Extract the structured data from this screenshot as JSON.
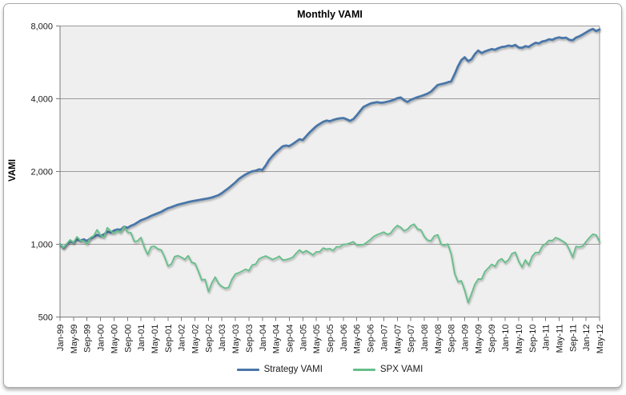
{
  "chart_data": {
    "type": "line",
    "title": "Monthly VAMI",
    "ylabel": "VAMI",
    "y_scale": "log",
    "ylim": [
      500,
      8000
    ],
    "grid": true,
    "legend_position": "bottom",
    "y_ticks": [
      {
        "value": 8000,
        "label": "8,000"
      },
      {
        "value": 4000,
        "label": "4,000"
      },
      {
        "value": 2000,
        "label": "2,000"
      },
      {
        "value": 1000,
        "label": "1,000"
      },
      {
        "value": 500,
        "label": "500"
      }
    ],
    "x_tick_every_months": 4,
    "x_tick_labels": [
      "Jan-99",
      "May-99",
      "Sep-99",
      "Jan-00",
      "May-00",
      "Sep-00",
      "Jan-01",
      "May-01",
      "Sep-01",
      "Jan-02",
      "May-02",
      "Sep-02",
      "Jan-03",
      "May-03",
      "Sep-03",
      "Jan-04",
      "May-04",
      "Sep-04",
      "Jan-05",
      "May-05",
      "Sep-05",
      "Jan-06",
      "May-06",
      "Sep-06",
      "Jan-07",
      "May-07",
      "Sep-07",
      "Jan-08",
      "May-08",
      "Sep-08",
      "Jan-09",
      "May-09",
      "Sep-09",
      "Jan-10",
      "May-10",
      "Sep-10",
      "Jan-11",
      "May-11",
      "Sep-11",
      "Jan-12",
      "May-12"
    ],
    "series": [
      {
        "name": "Strategy VAMI",
        "color": "#4A76A8",
        "line_width": 2.8,
        "values": [
          1000,
          965,
          1000,
          1030,
          1018,
          1048,
          1035,
          1048,
          1032,
          1058,
          1075,
          1092,
          1082,
          1098,
          1128,
          1118,
          1140,
          1152,
          1148,
          1183,
          1170,
          1192,
          1208,
          1232,
          1258,
          1272,
          1290,
          1310,
          1328,
          1345,
          1362,
          1388,
          1410,
          1424,
          1442,
          1458,
          1470,
          1482,
          1495,
          1505,
          1515,
          1524,
          1532,
          1541,
          1550,
          1562,
          1578,
          1598,
          1628,
          1668,
          1708,
          1755,
          1805,
          1862,
          1905,
          1945,
          1978,
          2005,
          2015,
          2042,
          2030,
          2120,
          2235,
          2320,
          2400,
          2470,
          2540,
          2562,
          2548,
          2600,
          2660,
          2720,
          2700,
          2800,
          2900,
          2990,
          3080,
          3150,
          3210,
          3250,
          3230,
          3270,
          3300,
          3320,
          3330,
          3290,
          3240,
          3300,
          3420,
          3560,
          3700,
          3760,
          3820,
          3850,
          3870,
          3850,
          3860,
          3890,
          3920,
          3960,
          4020,
          4050,
          3950,
          3880,
          3960,
          4010,
          4060,
          4100,
          4150,
          4200,
          4280,
          4420,
          4560,
          4600,
          4630,
          4680,
          4720,
          5050,
          5450,
          5780,
          5940,
          5720,
          5820,
          6120,
          6330,
          6180,
          6280,
          6350,
          6420,
          6380,
          6480,
          6550,
          6580,
          6640,
          6600,
          6680,
          6520,
          6500,
          6600,
          6560,
          6700,
          6820,
          6780,
          6900,
          6950,
          7050,
          7010,
          7120,
          7180,
          7130,
          7160,
          7020,
          6980,
          7160,
          7250,
          7380,
          7520,
          7680,
          7780,
          7620,
          7740
        ]
      },
      {
        "name": "SPX VAMI",
        "color": "#67BE8B",
        "line_width": 1.9,
        "values": [
          1000,
          968,
          1005,
          1043,
          1017,
          1073,
          1038,
          1032,
          1002,
          1065,
          1085,
          1148,
          1090,
          1068,
          1171,
          1135,
          1110,
          1137,
          1118,
          1186,
          1123,
          1117,
          1028,
          1032,
          1067,
          969,
          907,
          976,
          981,
          957,
          947,
          886,
          813,
          828,
          890,
          897,
          883,
          865,
          897,
          842,
          834,
          774,
          712,
          716,
          637,
          692,
          732,
          688,
          669,
          657,
          663,
          717,
          753,
          762,
          774,
          788,
          778,
          821,
          827,
          869,
          884,
          895,
          880,
          865,
          876,
          892,
          861,
          863,
          871,
          883,
          917,
          947,
          923,
          941,
          923,
          904,
          931,
          931,
          965,
          954,
          960,
          943,
          976,
          976,
          1000,
          1001,
          1012,
          1024,
          993,
          993,
          998,
          1019,
          1044,
          1077,
          1095,
          1108,
          1124,
          1099,
          1110,
          1158,
          1196,
          1175,
          1137,
          1152,
          1193,
          1211,
          1157,
          1147,
          1077,
          1040,
          1034,
          1083,
          1094,
          1000,
          990,
          1002,
          911,
          757,
          700,
          706,
          645,
          574,
          623,
          682,
          718,
          718,
          772,
          798,
          826,
          810,
          856,
          871,
          839,
          863,
          914,
          927,
          851,
          805,
          861,
          820,
          892,
          925,
          923,
          983,
          1005,
          1037,
          1036,
          1066,
          1051,
          1032,
          1010,
          952,
          884,
          979,
          975,
          983,
          1026,
          1067,
          1101,
          1092,
          1024
        ]
      }
    ],
    "colors": {
      "plot_bg": "#EFEFEF",
      "grid": "#9A9A9A",
      "axis": "#7B7B7B",
      "tick_text": "#1A1A1A",
      "panel_border": "#ABABAB"
    }
  }
}
